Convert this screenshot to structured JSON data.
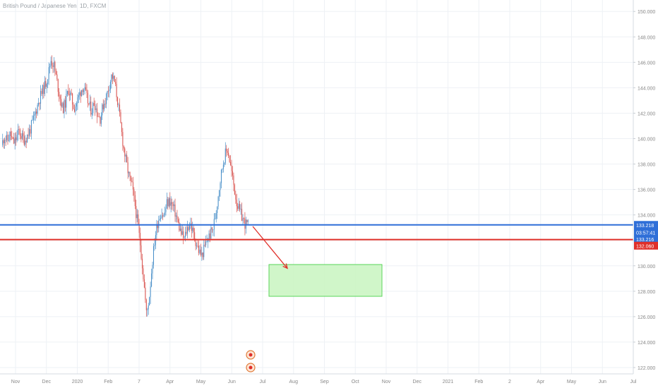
{
  "symbol_title": "British Pound / Japanese Yen, 1D, FXCM",
  "colors": {
    "background": "#ffffff",
    "grid": "#eef1f5",
    "up": "#4a90c9",
    "down": "#d9534f",
    "axis_text": "#888888",
    "level_blue": "#2f6fd8",
    "level_red": "#e0302a",
    "target_zone_fill": "#c8f5c0",
    "target_zone_stroke": "#5bd65b",
    "arrow": "#e0302a"
  },
  "chart_data": {
    "type": "candlestick",
    "y_axis": {
      "position": "right",
      "ticks": [
        "150.000",
        "148.000",
        "146.000",
        "144.000",
        "142.000",
        "140.000",
        "138.000",
        "136.000",
        "134.000",
        "132.000",
        "130.000",
        "128.000",
        "126.000",
        "124.000",
        "122.000"
      ],
      "range": [
        121.5,
        150.9
      ]
    },
    "x_axis": {
      "ticks": [
        "Nov",
        "Dec",
        "2020",
        "Feb",
        "7",
        "Apr",
        "May",
        "Jun",
        "Jul",
        "Aug",
        "Sep",
        "Oct",
        "Nov",
        "Dec",
        "2021",
        "Feb",
        "2",
        "Apr",
        "May",
        "Jun",
        "Jul"
      ]
    },
    "price_path": [
      139.5,
      140.2,
      139.8,
      140.4,
      139.6,
      140.0,
      140.6,
      140.1,
      139.9,
      140.3,
      140.8,
      141.5,
      142.3,
      143.1,
      143.7,
      144.2,
      145.0,
      146.2,
      145.8,
      144.6,
      143.4,
      142.3,
      142.8,
      143.9,
      143.2,
      142.4,
      142.9,
      143.6,
      144.1,
      143.5,
      142.7,
      142.2,
      142.9,
      142.0,
      141.6,
      142.6,
      143.2,
      144.1,
      145.0,
      144.4,
      143.0,
      141.2,
      139.4,
      138.1,
      137.0,
      136.2,
      134.8,
      133.2,
      131.4,
      128.9,
      126.1,
      127.7,
      130.3,
      132.4,
      133.6,
      134.2,
      133.9,
      134.9,
      135.1,
      134.7,
      134.1,
      133.2,
      132.5,
      132.1,
      132.9,
      133.4,
      132.6,
      131.9,
      131.2,
      130.8,
      131.4,
      132.1,
      132.5,
      133.0,
      134.3,
      136.1,
      137.6,
      138.7,
      139.2,
      137.8,
      136.4,
      135.1,
      134.3,
      133.8,
      133.3,
      133.216
    ],
    "levels": [
      {
        "price": 133.218,
        "label": "133.218",
        "color": "level_blue"
      },
      {
        "price": 132.06,
        "label": "132.060",
        "color": "level_red"
      }
    ],
    "price_tags": [
      {
        "price": 133.218,
        "label": "133.218",
        "color": "level_blue"
      },
      {
        "price": 132.632,
        "label": "03:57:41",
        "color": "level_blue"
      },
      {
        "price": 132.106,
        "label": "133.216",
        "color": "level_blue"
      },
      {
        "price": 131.58,
        "label": "132.060",
        "color": "level_red"
      }
    ],
    "target_zone": {
      "price_top": 130.1,
      "price_bottom": 127.6
    },
    "arrow": {
      "from_price": 133.1,
      "to_price": 129.8
    }
  }
}
